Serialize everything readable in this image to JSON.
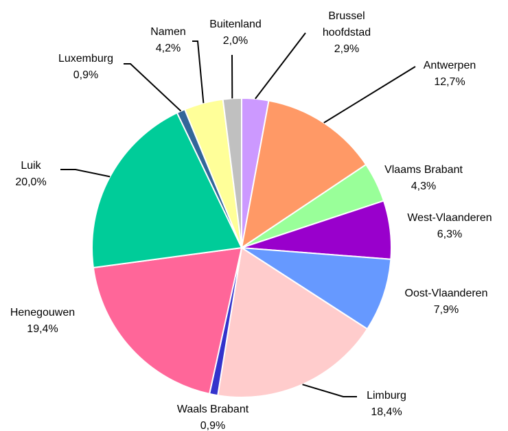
{
  "chart_data": {
    "type": "pie",
    "categories": [
      "Brussel hoofdstad",
      "Antwerpen",
      "Vlaams Brabant",
      "West-Vlaanderen",
      "Oost-Vlaanderen",
      "Limburg",
      "Waals Brabant",
      "Henegouwen",
      "Luik",
      "Luxemburg",
      "Namen",
      "Buitenland"
    ],
    "values": [
      2.9,
      12.7,
      4.3,
      6.3,
      7.9,
      18.4,
      0.9,
      19.4,
      20.0,
      0.9,
      4.2,
      2.0
    ],
    "value_labels": [
      "2,9%",
      "12,7%",
      "4,3%",
      "6,3%",
      "7,9%",
      "18,4%",
      "0,9%",
      "19,4%",
      "20,0%",
      "0,9%",
      "4,2%",
      "2,0%"
    ],
    "colors": [
      "#cc99ff",
      "#ff9966",
      "#99ff99",
      "#9900cc",
      "#6699ff",
      "#ffcccc",
      "#3333cc",
      "#ff6699",
      "#00cc99",
      "#336699",
      "#ffff99",
      "#c0c0c0"
    ]
  }
}
